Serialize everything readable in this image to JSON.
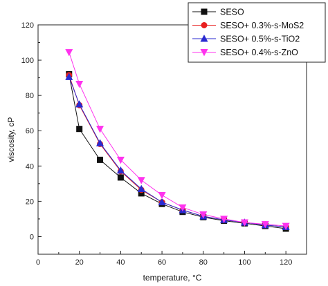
{
  "chart_data": {
    "type": "line",
    "title": "",
    "xlabel": "temperature, °C",
    "ylabel": "viscosity, cP",
    "xlim": [
      0,
      130
    ],
    "ylim": [
      -10,
      120
    ],
    "xticks": [
      0,
      20,
      40,
      60,
      80,
      100,
      120
    ],
    "yticks": [
      0,
      20,
      40,
      60,
      80,
      100,
      120
    ],
    "grid": false,
    "legend_position": "top-right",
    "series": [
      {
        "name": "SESO",
        "color": "#111111",
        "marker": "square",
        "x": [
          15,
          20,
          30,
          40,
          50,
          60,
          70,
          80,
          90,
          100,
          110,
          120
        ],
        "y": [
          92,
          61,
          43.5,
          33.5,
          24.5,
          18.5,
          14,
          11,
          9,
          7.5,
          6,
          4.5
        ]
      },
      {
        "name": "SESO+ 0.3%-s-MoS2",
        "color": "#e82020",
        "marker": "circle",
        "x": [
          15,
          20,
          30,
          40,
          50,
          60,
          70,
          80,
          90,
          100,
          110,
          120
        ],
        "y": [
          91.5,
          74.5,
          52.5,
          37,
          26.5,
          19.5,
          15,
          11.5,
          9.5,
          8,
          6.5,
          5.5
        ]
      },
      {
        "name": "SESO+ 0.5%-s-TiO2",
        "color": "#2a2ad0",
        "marker": "triangle-up",
        "x": [
          15,
          20,
          30,
          40,
          50,
          60,
          70,
          80,
          90,
          100,
          110,
          120
        ],
        "y": [
          90.5,
          75,
          53,
          37.5,
          27,
          19.5,
          15,
          11.5,
          9.5,
          8,
          6.5,
          5.5
        ]
      },
      {
        "name": "SESO+ 0.4%-s-ZnO",
        "color": "#ff33ee",
        "marker": "triangle-down",
        "x": [
          15,
          20,
          30,
          40,
          50,
          60,
          70,
          80,
          90,
          100,
          110,
          120
        ],
        "y": [
          104.5,
          86.5,
          61,
          43.5,
          32,
          23.5,
          16.5,
          12.5,
          10,
          8,
          7,
          6
        ]
      }
    ]
  }
}
